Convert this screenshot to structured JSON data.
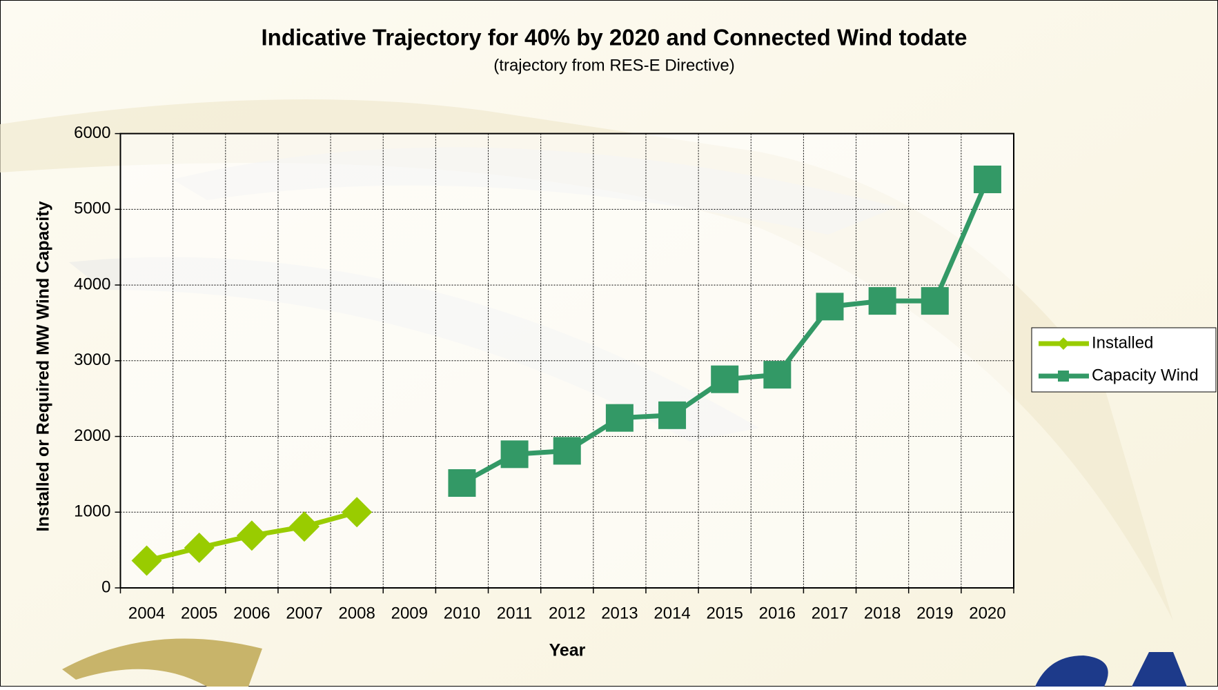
{
  "chart_data": {
    "type": "line",
    "title": "Indicative Trajectory for 40% by 2020 and Connected Wind todate",
    "subtitle": "(trajectory from RES-E Directive)",
    "x_label": "Year",
    "y_label": "Installed or Required MW Wind Capacity",
    "categories": [
      "2004",
      "2005",
      "2006",
      "2007",
      "2008",
      "2009",
      "2010",
      "2011",
      "2012",
      "2013",
      "2014",
      "2015",
      "2016",
      "2017",
      "2018",
      "2019",
      "2020"
    ],
    "series": [
      {
        "name": "Installed",
        "color": "#99cc00",
        "marker": "diamond",
        "values": [
          360,
          530,
          690,
          810,
          1000,
          null,
          null,
          null,
          null,
          null,
          null,
          null,
          null,
          null,
          null,
          null,
          null
        ]
      },
      {
        "name": "Capacity Wind",
        "color": "#339966",
        "marker": "square",
        "values": [
          null,
          null,
          null,
          null,
          null,
          null,
          1385,
          1765,
          1810,
          2245,
          2280,
          2755,
          2815,
          3715,
          3790,
          3790,
          5395
        ]
      }
    ],
    "ylim": [
      0,
      6000
    ],
    "yticks": [
      0,
      1000,
      2000,
      3000,
      4000,
      5000,
      6000
    ],
    "grid": true,
    "legend": "right"
  }
}
